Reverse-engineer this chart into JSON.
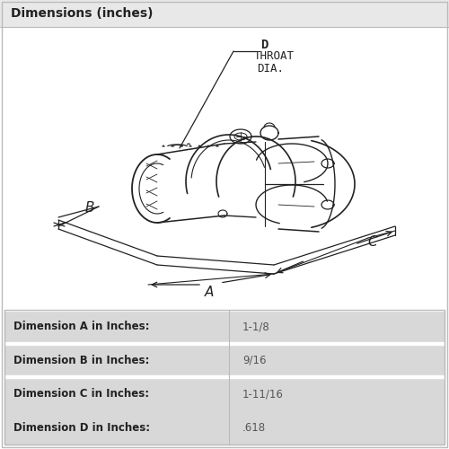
{
  "title": "Dimensions (inches)",
  "title_bg": "#e8e8e8",
  "diagram_bg": "#ffffff",
  "table_bg_row_A": "#d8d8d8",
  "table_bg_row_B": "#d8d8d8",
  "table_bg_row_C": "#d8d8d8",
  "table_bg_row_D": "#d8d8d8",
  "table_divider_color": "#bbbbbb",
  "dim_label_color": "#222222",
  "value_color": "#555555",
  "border_color": "#bbbbbb",
  "text_color_dark": "#222222",
  "lc": "#222222",
  "d_line1": "D",
  "d_line2": "THROAT",
  "d_line3": "DIA.",
  "label_A": "A",
  "label_B": "B",
  "label_C": "C",
  "bg_color": "#ffffff",
  "table_rows": [
    {
      "label": "Dimension A in Inches:",
      "value": "1-1/8"
    },
    {
      "label": "Dimension B in Inches:",
      "value": "9/16"
    },
    {
      "label": "Dimension C in Inches:",
      "value": "1-11/16"
    },
    {
      "label": "Dimension D in Inches:",
      "value": ".618"
    }
  ]
}
